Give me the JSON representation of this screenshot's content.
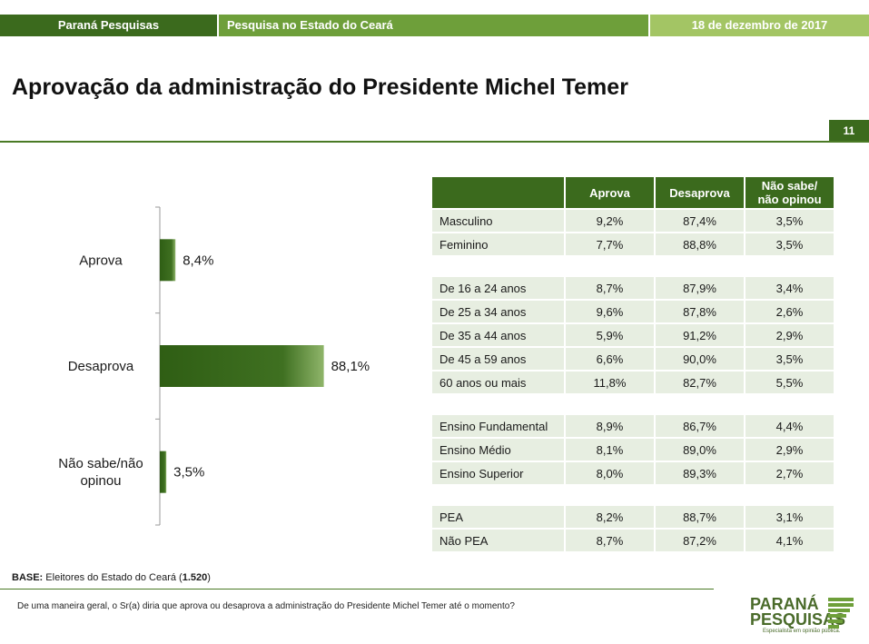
{
  "header": {
    "left": "Paraná Pesquisas",
    "middle": "Pesquisa no Estado do Ceará",
    "right": "18 de dezembro de 2017"
  },
  "title": "Aprovação da administração do Presidente Michel Temer",
  "page_number": "11",
  "colors": {
    "dark_green": "#3b6a1d",
    "mid_green": "#6e9f3a",
    "light_green": "#a3c564",
    "cell_bg": "#e7eee1"
  },
  "chart_data": {
    "type": "bar",
    "orientation": "horizontal",
    "categories": [
      "Aprova",
      "Desaprova",
      "Não sabe/não opinou"
    ],
    "category_lines": [
      [
        "Aprova"
      ],
      [
        "Desaprova"
      ],
      [
        "Não sabe/não",
        "opinou"
      ]
    ],
    "values": [
      8.4,
      88.1,
      3.5
    ],
    "value_labels": [
      "8,4%",
      "88,1%",
      "3,5%"
    ],
    "xlim": [
      0,
      100
    ],
    "grid": false,
    "legend": "none"
  },
  "table": {
    "headers": [
      "",
      "Aprova",
      "Desaprova",
      "Não sabe/ não opinou"
    ],
    "header_lines": [
      [
        ""
      ],
      [
        "Aprova"
      ],
      [
        "Desaprova"
      ],
      [
        "Não sabe/",
        "não opinou"
      ]
    ],
    "groups": [
      [
        [
          "Masculino",
          "9,2%",
          "87,4%",
          "3,5%"
        ],
        [
          "Feminino",
          "7,7%",
          "88,8%",
          "3,5%"
        ]
      ],
      [
        [
          "De 16 a 24 anos",
          "8,7%",
          "87,9%",
          "3,4%"
        ],
        [
          "De 25 a 34 anos",
          "9,6%",
          "87,8%",
          "2,6%"
        ],
        [
          "De 35 a 44 anos",
          "5,9%",
          "91,2%",
          "2,9%"
        ],
        [
          "De 45 a 59 anos",
          "6,6%",
          "90,0%",
          "3,5%"
        ],
        [
          "60 anos ou mais",
          "11,8%",
          "82,7%",
          "5,5%"
        ]
      ],
      [
        [
          "Ensino Fundamental",
          "8,9%",
          "86,7%",
          "4,4%"
        ],
        [
          "Ensino Médio",
          "8,1%",
          "89,0%",
          "2,9%"
        ],
        [
          "Ensino Superior",
          "8,0%",
          "89,3%",
          "2,7%"
        ]
      ],
      [
        [
          "PEA",
          "8,2%",
          "88,7%",
          "3,1%"
        ],
        [
          "Não PEA",
          "8,7%",
          "87,2%",
          "4,1%"
        ]
      ]
    ]
  },
  "footer": {
    "base_label": "BASE:",
    "base_text": "Eleitores do Estado do Ceará (",
    "base_count": "1.520",
    "base_close": ")",
    "question": "De uma maneira geral, o Sr(a) diria que aprova ou desaprova a administração do Presidente Michel Temer até o momento?"
  },
  "logo": {
    "line1": "PARANÁ",
    "line2": "PESQUISAS",
    "tagline": "Especialista em opinião pública."
  }
}
